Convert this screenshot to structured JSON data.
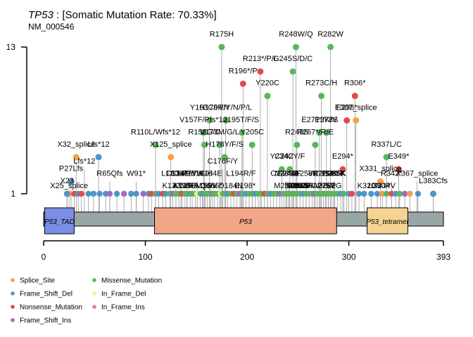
{
  "header": {
    "gene": "TP53",
    "rate_text": " : [Somatic Mutation Rate: 70.33%]",
    "transcript": "NM_000546"
  },
  "colors": {
    "Splice_Site": "#f5a046",
    "Frame_Shift_Del": "#4f95c8",
    "Nonsense_Mutation": "#e44a4c",
    "Frame_Shift_Ins": "#9a6ec2",
    "Missense_Mutation": "#5cb55c",
    "In_Frame_Del": "#f7f08e",
    "In_Frame_Ins": "#e07a9a",
    "protein_bar": "#99a6a6",
    "P53_TAD": "#7b8ee6",
    "P53": "#f2a688",
    "P53_tetramer": "#f5d491"
  },
  "chart_data": {
    "type": "lollipop",
    "protein_length": 393,
    "x_ticks": [
      0,
      100,
      200,
      300,
      393
    ],
    "y_ticks": [
      1,
      13
    ],
    "domains": [
      {
        "name": "P53_TAD",
        "start": 1,
        "end": 30
      },
      {
        "name": "P53",
        "start": 109,
        "end": 288
      },
      {
        "name": "P53_tetramer",
        "start": 318,
        "end": 358
      }
    ],
    "labelled_mutations": [
      {
        "label": "R175H",
        "pos": 175,
        "count": 13,
        "type": "Missense_Mutation"
      },
      {
        "label": "R248W/Q",
        "pos": 248,
        "count": 13,
        "type": "Missense_Mutation"
      },
      {
        "label": "R282W",
        "pos": 282,
        "count": 13,
        "type": "Missense_Mutation"
      },
      {
        "label": "R213*/P/L",
        "pos": 213,
        "count": 11,
        "type": "Nonsense_Mutation"
      },
      {
        "label": "R196*/P",
        "pos": 196,
        "count": 10,
        "type": "Nonsense_Mutation"
      },
      {
        "label": "G245S/D/C",
        "pos": 245,
        "count": 11,
        "type": "Missense_Mutation"
      },
      {
        "label": "Y220C",
        "pos": 220,
        "count": 9,
        "type": "Missense_Mutation"
      },
      {
        "label": "R273C/H",
        "pos": 273,
        "count": 9,
        "type": "Missense_Mutation"
      },
      {
        "label": "R306*",
        "pos": 306,
        "count": 9,
        "type": "Nonsense_Mutation"
      },
      {
        "label": "E307_splice",
        "pos": 307,
        "count": 7,
        "type": "Splice_Site"
      },
      {
        "label": "E298*",
        "pos": 298,
        "count": 7,
        "type": "Nonsense_Mutation"
      },
      {
        "label": "Y163C/H/N",
        "pos": 163,
        "count": 7,
        "type": "Missense_Mutation"
      },
      {
        "label": "H179R/Y/N/P/L",
        "pos": 179,
        "count": 7,
        "type": "Missense_Mutation"
      },
      {
        "label": "V157F/Pfs*12",
        "pos": 157,
        "count": 6,
        "type": "Missense_Mutation"
      },
      {
        "label": "I195T/F/S",
        "pos": 195,
        "count": 6,
        "type": "Missense_Mutation"
      },
      {
        "label": "E271*/K/V",
        "pos": 271,
        "count": 6,
        "type": "Missense_Mutation"
      },
      {
        "label": "P278S",
        "pos": 278,
        "count": 6,
        "type": "Missense_Mutation"
      },
      {
        "label": "R110L/Wfs*12",
        "pos": 110,
        "count": 5,
        "type": "Missense_Mutation"
      },
      {
        "label": "V173M/G/L",
        "pos": 173,
        "count": 5,
        "type": "Missense_Mutation"
      },
      {
        "label": "R158G/C",
        "pos": 158,
        "count": 5,
        "type": "Missense_Mutation"
      },
      {
        "label": "Y205C",
        "pos": 205,
        "count": 5,
        "type": "Missense_Mutation"
      },
      {
        "label": "R249S",
        "pos": 249,
        "count": 5,
        "type": "Missense_Mutation"
      },
      {
        "label": "R267*/R/E",
        "pos": 267,
        "count": 5,
        "type": "Missense_Mutation"
      },
      {
        "label": "R337L/C",
        "pos": 337,
        "count": 4,
        "type": "Missense_Mutation"
      },
      {
        "label": "X32_splice",
        "pos": 32,
        "count": 4,
        "type": "Splice_Site"
      },
      {
        "label": "Lfs*12",
        "pos": 54,
        "count": 4,
        "type": "Frame_Shift_Del"
      },
      {
        "label": "X125_splice",
        "pos": 125,
        "count": 4,
        "type": "Splice_Site"
      },
      {
        "label": "H178Y/F/S",
        "pos": 178,
        "count": 4,
        "type": "Missense_Mutation"
      },
      {
        "label": "Y234C",
        "pos": 234,
        "count": 3,
        "type": "Missense_Mutation"
      },
      {
        "label": "C242Y/F",
        "pos": 242,
        "count": 3,
        "type": "Missense_Mutation"
      },
      {
        "label": "E294*",
        "pos": 294,
        "count": 3,
        "type": "Nonsense_Mutation"
      },
      {
        "label": "E349*",
        "pos": 349,
        "count": 3,
        "type": "Nonsense_Mutation"
      },
      {
        "label": "P27Lfs",
        "pos": 27,
        "count": 2,
        "type": "Frame_Shift_Del"
      },
      {
        "label": "X331_splice",
        "pos": 331,
        "count": 2,
        "type": "Splice_Site"
      },
      {
        "label": "X23",
        "pos": 23,
        "count": 1,
        "type": "Frame_Shift_Del"
      },
      {
        "label": "L383Cfs",
        "pos": 383,
        "count": 1,
        "type": "Frame_Shift_Del"
      }
    ],
    "background_mutations": [
      {
        "pos": 23,
        "type": "Frame_Shift_Del"
      },
      {
        "pos": 25,
        "type": "Splice_Site"
      },
      {
        "pos": 30,
        "type": "Nonsense_Mutation"
      },
      {
        "pos": 34,
        "type": "Frame_Shift_Del"
      },
      {
        "pos": 37,
        "type": "Nonsense_Mutation"
      },
      {
        "pos": 44,
        "type": "Frame_Shift_Del"
      },
      {
        "pos": 49,
        "type": "Frame_Shift_Del"
      },
      {
        "pos": 55,
        "type": "Frame_Shift_Del"
      },
      {
        "pos": 61,
        "type": "Frame_Shift_Del"
      },
      {
        "pos": 65,
        "type": "Frame_Shift_Ins"
      },
      {
        "pos": 72,
        "type": "Frame_Shift_Del"
      },
      {
        "pos": 79,
        "type": "Frame_Shift_Ins"
      },
      {
        "pos": 86,
        "type": "Frame_Shift_Del"
      },
      {
        "pos": 91,
        "type": "Frame_Shift_Del"
      },
      {
        "pos": 98,
        "type": "Frame_Shift_Ins"
      },
      {
        "pos": 103,
        "type": "Frame_Shift_Del"
      },
      {
        "pos": 106,
        "type": "Nonsense_Mutation"
      },
      {
        "pos": 110,
        "type": "Missense_Mutation"
      },
      {
        "pos": 113,
        "type": "Frame_Shift_Del"
      },
      {
        "pos": 117,
        "type": "Nonsense_Mutation"
      },
      {
        "pos": 120,
        "type": "Frame_Shift_Del"
      },
      {
        "pos": 124,
        "type": "Missense_Mutation"
      },
      {
        "pos": 127,
        "type": "Frame_Shift_Ins"
      },
      {
        "pos": 130,
        "type": "Missense_Mutation"
      },
      {
        "pos": 133,
        "type": "Missense_Mutation"
      },
      {
        "pos": 136,
        "type": "Nonsense_Mutation"
      },
      {
        "pos": 139,
        "type": "Missense_Mutation"
      },
      {
        "pos": 141,
        "type": "Missense_Mutation"
      },
      {
        "pos": 144,
        "type": "Frame_Shift_Del"
      },
      {
        "pos": 146,
        "type": "Missense_Mutation"
      },
      {
        "pos": 149,
        "type": "Missense_Mutation"
      },
      {
        "pos": 151,
        "type": "In_Frame_Del"
      },
      {
        "pos": 154,
        "type": "Missense_Mutation"
      },
      {
        "pos": 156,
        "type": "Frame_Shift_Del"
      },
      {
        "pos": 159,
        "type": "Missense_Mutation"
      },
      {
        "pos": 161,
        "type": "Missense_Mutation"
      },
      {
        "pos": 164,
        "type": "Missense_Mutation"
      },
      {
        "pos": 166,
        "type": "Frame_Shift_Ins"
      },
      {
        "pos": 168,
        "type": "Missense_Mutation"
      },
      {
        "pos": 171,
        "type": "Missense_Mutation"
      },
      {
        "pos": 174,
        "type": "In_Frame_Del"
      },
      {
        "pos": 176,
        "type": "Missense_Mutation"
      },
      {
        "pos": 179,
        "type": "Missense_Mutation"
      },
      {
        "pos": 181,
        "type": "Frame_Shift_Del"
      },
      {
        "pos": 184,
        "type": "Missense_Mutation"
      },
      {
        "pos": 187,
        "type": "Nonsense_Mutation"
      },
      {
        "pos": 190,
        "type": "Missense_Mutation"
      },
      {
        "pos": 193,
        "type": "Frame_Shift_Ins"
      },
      {
        "pos": 196,
        "type": "Missense_Mutation"
      },
      {
        "pos": 199,
        "type": "Frame_Shift_Del"
      },
      {
        "pos": 202,
        "type": "Missense_Mutation"
      },
      {
        "pos": 205,
        "type": "Missense_Mutation"
      },
      {
        "pos": 208,
        "type": "Frame_Shift_Del"
      },
      {
        "pos": 211,
        "type": "Missense_Mutation"
      },
      {
        "pos": 214,
        "type": "Missense_Mutation"
      },
      {
        "pos": 217,
        "type": "Nonsense_Mutation"
      },
      {
        "pos": 220,
        "type": "Missense_Mutation"
      },
      {
        "pos": 223,
        "type": "Frame_Shift_Del"
      },
      {
        "pos": 226,
        "type": "Missense_Mutation"
      },
      {
        "pos": 229,
        "type": "Missense_Mutation"
      },
      {
        "pos": 232,
        "type": "Frame_Shift_Ins"
      },
      {
        "pos": 236,
        "type": "Missense_Mutation"
      },
      {
        "pos": 239,
        "type": "Missense_Mutation"
      },
      {
        "pos": 241,
        "type": "Missense_Mutation"
      },
      {
        "pos": 244,
        "type": "Missense_Mutation"
      },
      {
        "pos": 246,
        "type": "Missense_Mutation"
      },
      {
        "pos": 249,
        "type": "Missense_Mutation"
      },
      {
        "pos": 252,
        "type": "Missense_Mutation"
      },
      {
        "pos": 255,
        "type": "Frame_Shift_Del"
      },
      {
        "pos": 258,
        "type": "Missense_Mutation"
      },
      {
        "pos": 261,
        "type": "Missense_Mutation"
      },
      {
        "pos": 264,
        "type": "Missense_Mutation"
      },
      {
        "pos": 266,
        "type": "Frame_Shift_Ins"
      },
      {
        "pos": 269,
        "type": "Missense_Mutation"
      },
      {
        "pos": 272,
        "type": "Missense_Mutation"
      },
      {
        "pos": 275,
        "type": "Missense_Mutation"
      },
      {
        "pos": 277,
        "type": "Missense_Mutation"
      },
      {
        "pos": 280,
        "type": "Missense_Mutation"
      },
      {
        "pos": 283,
        "type": "Missense_Mutation"
      },
      {
        "pos": 286,
        "type": "Missense_Mutation"
      },
      {
        "pos": 289,
        "type": "Missense_Mutation"
      },
      {
        "pos": 292,
        "type": "Frame_Shift_Del"
      },
      {
        "pos": 295,
        "type": "Missense_Mutation"
      },
      {
        "pos": 300,
        "type": "Frame_Shift_Del"
      },
      {
        "pos": 303,
        "type": "Nonsense_Mutation"
      },
      {
        "pos": 310,
        "type": "Frame_Shift_Del"
      },
      {
        "pos": 315,
        "type": "Frame_Shift_Del"
      },
      {
        "pos": 322,
        "type": "Frame_Shift_Del"
      },
      {
        "pos": 328,
        "type": "Frame_Shift_Del"
      },
      {
        "pos": 333,
        "type": "Splice_Site"
      },
      {
        "pos": 337,
        "type": "Missense_Mutation"
      },
      {
        "pos": 342,
        "type": "Nonsense_Mutation"
      },
      {
        "pos": 346,
        "type": "Frame_Shift_Del"
      },
      {
        "pos": 350,
        "type": "Missense_Mutation"
      },
      {
        "pos": 355,
        "type": "Frame_Shift_Ins"
      },
      {
        "pos": 360,
        "type": "Splice_Site"
      },
      {
        "pos": 368,
        "type": "Frame_Shift_Del"
      },
      {
        "pos": 383,
        "type": "Frame_Shift_Del"
      }
    ],
    "overlap_labels": [
      {
        "label": "X25_splice",
        "pos": 25,
        "count": 1
      },
      {
        "label": "Lfs*12",
        "pos": 40,
        "count": 3
      },
      {
        "label": "R65Qfs",
        "pos": 65,
        "count": 2
      },
      {
        "label": "W91*",
        "pos": 91,
        "count": 2
      },
      {
        "label": "L130V/F",
        "pos": 130,
        "count": 2
      },
      {
        "label": "K132N/R",
        "pos": 132,
        "count": 1
      },
      {
        "label": "C135F/Y",
        "pos": 135,
        "count": 2
      },
      {
        "label": "A138P",
        "pos": 138,
        "count": 1
      },
      {
        "label": "K139E",
        "pos": 139,
        "count": 1
      },
      {
        "label": "C141Y/W",
        "pos": 141,
        "count": 2
      },
      {
        "label": "P151S/H",
        "pos": 151,
        "count": 2
      },
      {
        "label": "A159V",
        "pos": 159,
        "count": 1
      },
      {
        "label": "M160I",
        "pos": 160,
        "count": 1
      },
      {
        "label": "K164E",
        "pos": 164,
        "count": 2
      },
      {
        "label": "Q165*",
        "pos": 165,
        "count": 1
      },
      {
        "label": "C176F/Y",
        "pos": 176,
        "count": 3
      },
      {
        "label": "D184N",
        "pos": 184,
        "count": 1
      },
      {
        "label": "L194R/F",
        "pos": 194,
        "count": 2
      },
      {
        "label": "E198*",
        "pos": 198,
        "count": 1
      },
      {
        "label": "N239D",
        "pos": 239,
        "count": 2
      },
      {
        "label": "S241F",
        "pos": 241,
        "count": 2
      },
      {
        "label": "M237I",
        "pos": 237,
        "count": 1
      },
      {
        "label": "C238Y/F",
        "pos": 238,
        "count": 2
      },
      {
        "label": "N247I",
        "pos": 247,
        "count": 1
      },
      {
        "label": "P250L",
        "pos": 250,
        "count": 1
      },
      {
        "label": "I251S",
        "pos": 251,
        "count": 1
      },
      {
        "label": "L252P",
        "pos": 252,
        "count": 1
      },
      {
        "label": "T253N",
        "pos": 253,
        "count": 1
      },
      {
        "label": "I255F",
        "pos": 255,
        "count": 1
      },
      {
        "label": "E258K",
        "pos": 258,
        "count": 2
      },
      {
        "label": "V272M",
        "pos": 272,
        "count": 2
      },
      {
        "label": "C275Y",
        "pos": 275,
        "count": 1
      },
      {
        "label": "A276P",
        "pos": 276,
        "count": 1
      },
      {
        "label": "R280K/T",
        "pos": 280,
        "count": 2
      },
      {
        "label": "D281G",
        "pos": 281,
        "count": 1
      },
      {
        "label": "E285K",
        "pos": 285,
        "count": 2
      },
      {
        "label": "E286K",
        "pos": 286,
        "count": 2
      },
      {
        "label": "K320N",
        "pos": 320,
        "count": 1
      },
      {
        "label": "L330P",
        "pos": 330,
        "count": 1
      },
      {
        "label": "G334V",
        "pos": 334,
        "count": 1
      },
      {
        "label": "R342*",
        "pos": 342,
        "count": 2
      },
      {
        "label": "X367_splice",
        "pos": 367,
        "count": 2
      }
    ]
  },
  "legend": {
    "col1": [
      "Splice_Site",
      "Frame_Shift_Del",
      "Nonsense_Mutation",
      "Frame_Shift_Ins"
    ],
    "col2": [
      "Missense_Mutation",
      "In_Frame_Del",
      "In_Frame_Ins"
    ]
  }
}
